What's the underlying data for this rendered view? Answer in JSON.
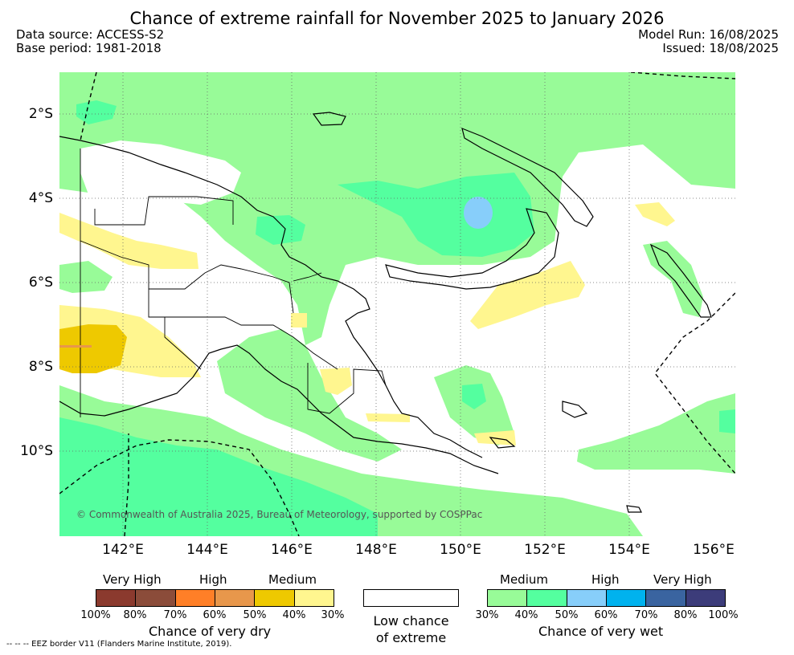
{
  "title": "Chance of extreme rainfall for November 2025 to January 2026",
  "meta": {
    "data_source": "Data source: ACCESS-S2",
    "base_period": "Base period: 1981-2018",
    "model_run": "Model Run: 16/08/2025",
    "issued": "Issued: 18/08/2025"
  },
  "map": {
    "lat_labels": [
      "2°S",
      "4°S",
      "6°S",
      "8°S",
      "10°S"
    ],
    "lon_labels": [
      "142°E",
      "144°E",
      "146°E",
      "148°E",
      "150°E",
      "152°E",
      "154°E",
      "156°E"
    ],
    "copyright": "© Commonwealth of Australia 2025, Bureau of Meteorology, supported by COSPPac"
  },
  "legend": {
    "dry": {
      "headings": [
        "Very High",
        "High",
        "Medium"
      ],
      "colors": [
        "#8b3a2e",
        "#8b4c3a",
        "#ff7f27",
        "#e8974b",
        "#eec900",
        "#fff68f"
      ],
      "ticks": [
        "100%",
        "80%",
        "70%",
        "60%",
        "50%",
        "40%",
        "30%"
      ],
      "caption": "Chance of very dry"
    },
    "low": {
      "caption_line1": "Low chance",
      "caption_line2": "of extreme"
    },
    "wet": {
      "headings": [
        "Medium",
        "High",
        "Very High"
      ],
      "colors": [
        "#98fb98",
        "#54ff9f",
        "#87cefa",
        "#00b2ee",
        "#3a64a0",
        "#3c3c7a"
      ],
      "ticks": [
        "30%",
        "40%",
        "50%",
        "60%",
        "70%",
        "80%",
        "100%"
      ],
      "caption": "Chance of very wet"
    },
    "eez_note": "-- -- -- EEZ border V11 (Flanders Marine Institute, 2019)."
  }
}
